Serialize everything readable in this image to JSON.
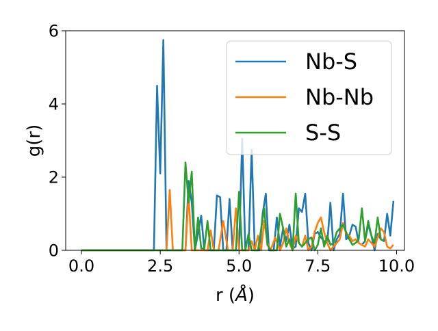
{
  "chart_data": {
    "type": "line",
    "title": "",
    "xlabel": "r (",
    "xlabel_unit": "Å",
    "xlabel_close": ")",
    "ylabel": "g(r)",
    "xlim": [
      -0.5,
      10.25
    ],
    "ylim": [
      0,
      6
    ],
    "xticks": [
      0.0,
      2.5,
      5.0,
      7.5,
      10.0
    ],
    "xtick_labels": [
      "0.0",
      "2.5",
      "5.0",
      "7.5",
      "10.0"
    ],
    "yticks": [
      0,
      2,
      4,
      6
    ],
    "ytick_labels": [
      "0",
      "2",
      "4",
      "6"
    ],
    "grid": false,
    "legend_position": "upper-right",
    "series": [
      {
        "name": "Nb-S",
        "color": "#1f77b4",
        "points": [
          [
            0,
            0
          ],
          [
            2.3,
            0
          ],
          [
            2.4,
            4.5
          ],
          [
            2.5,
            2.1
          ],
          [
            2.6,
            5.75
          ],
          [
            2.7,
            0
          ],
          [
            3.3,
            0
          ],
          [
            3.4,
            1.9
          ],
          [
            3.5,
            1.3
          ],
          [
            3.6,
            0
          ],
          [
            3.8,
            0.95
          ],
          [
            3.9,
            0
          ],
          [
            4.2,
            0
          ],
          [
            4.3,
            1.5
          ],
          [
            4.4,
            1.45
          ],
          [
            4.5,
            0
          ],
          [
            4.6,
            0
          ],
          [
            4.7,
            1.4
          ],
          [
            4.8,
            0
          ],
          [
            5.0,
            0
          ],
          [
            5.1,
            3.05
          ],
          [
            5.2,
            0
          ],
          [
            5.3,
            0
          ],
          [
            5.4,
            2.75
          ],
          [
            5.5,
            0
          ],
          [
            5.65,
            0
          ],
          [
            5.75,
            1.0
          ],
          [
            5.85,
            1.55
          ],
          [
            5.95,
            0
          ],
          [
            6.1,
            0
          ],
          [
            6.2,
            0.9
          ],
          [
            6.3,
            0.1
          ],
          [
            6.4,
            0.6
          ],
          [
            6.5,
            0.25
          ],
          [
            6.6,
            0.7
          ],
          [
            6.7,
            0.05
          ],
          [
            6.8,
            0.1
          ],
          [
            6.9,
            1.15
          ],
          [
            7.0,
            1.05
          ],
          [
            7.1,
            1.55
          ],
          [
            7.2,
            0.2
          ],
          [
            7.3,
            0
          ],
          [
            7.4,
            0.45
          ],
          [
            7.5,
            0.5
          ],
          [
            7.6,
            0.35
          ],
          [
            7.7,
            0.25
          ],
          [
            7.8,
            0.2
          ],
          [
            7.9,
            1.3
          ],
          [
            8.0,
            0
          ],
          [
            8.1,
            0.3
          ],
          [
            8.2,
            0.45
          ],
          [
            8.3,
            1.55
          ],
          [
            8.4,
            0.3
          ],
          [
            8.5,
            0.4
          ],
          [
            8.6,
            0.7
          ],
          [
            8.7,
            0.65
          ],
          [
            8.8,
            0.2
          ],
          [
            8.9,
            0.15
          ],
          [
            9.0,
            0.25
          ],
          [
            9.1,
            0.7
          ],
          [
            9.2,
            0.4
          ],
          [
            9.3,
            0
          ],
          [
            9.4,
            0.45
          ],
          [
            9.5,
            0.3
          ],
          [
            9.6,
            0.25
          ],
          [
            9.7,
            1.0
          ],
          [
            9.8,
            0.4
          ],
          [
            9.9,
            1.35
          ]
        ]
      },
      {
        "name": "Nb-Nb",
        "color": "#ff7f0e",
        "points": [
          [
            0,
            0
          ],
          [
            2.7,
            0
          ],
          [
            2.8,
            1.65
          ],
          [
            2.9,
            0
          ],
          [
            3.3,
            0
          ],
          [
            3.4,
            1.5
          ],
          [
            3.5,
            0
          ],
          [
            4.0,
            0
          ],
          [
            4.1,
            0.55
          ],
          [
            4.2,
            0
          ],
          [
            4.35,
            0
          ],
          [
            4.5,
            0.8
          ],
          [
            4.65,
            0
          ],
          [
            4.8,
            0
          ],
          [
            4.9,
            1.15
          ],
          [
            5.0,
            0
          ],
          [
            5.3,
            0
          ],
          [
            5.4,
            0.25
          ],
          [
            5.5,
            0
          ],
          [
            5.6,
            0.4
          ],
          [
            5.7,
            0
          ],
          [
            5.8,
            0.8
          ],
          [
            5.9,
            0.2
          ],
          [
            6.0,
            0
          ],
          [
            6.15,
            0.35
          ],
          [
            6.3,
            0
          ],
          [
            6.4,
            0.2
          ],
          [
            6.5,
            0.6
          ],
          [
            6.6,
            0.2
          ],
          [
            6.7,
            0
          ],
          [
            6.8,
            0.4
          ],
          [
            6.9,
            0.2
          ],
          [
            7.0,
            0.1
          ],
          [
            7.1,
            0.4
          ],
          [
            7.2,
            0
          ],
          [
            7.3,
            0.1
          ],
          [
            7.4,
            0.5
          ],
          [
            7.5,
            0.75
          ],
          [
            7.6,
            0.9
          ],
          [
            7.7,
            0.5
          ],
          [
            7.8,
            0.2
          ],
          [
            7.9,
            0
          ],
          [
            8.0,
            0.1
          ],
          [
            8.1,
            0.2
          ],
          [
            8.2,
            0.3
          ],
          [
            8.3,
            0.75
          ],
          [
            8.4,
            0.45
          ],
          [
            8.5,
            0.4
          ],
          [
            8.6,
            0.25
          ],
          [
            8.7,
            0.3
          ],
          [
            8.8,
            0.2
          ],
          [
            8.9,
            0.15
          ],
          [
            9.0,
            0.1
          ],
          [
            9.1,
            0.3
          ],
          [
            9.2,
            0.2
          ],
          [
            9.3,
            0.1
          ],
          [
            9.4,
            0.35
          ],
          [
            9.5,
            0.6
          ],
          [
            9.6,
            0.5
          ],
          [
            9.7,
            0.1
          ],
          [
            9.8,
            0.05
          ],
          [
            9.9,
            0.15
          ]
        ]
      },
      {
        "name": "S-S",
        "color": "#2ca02c",
        "points": [
          [
            0,
            0
          ],
          [
            3.2,
            0
          ],
          [
            3.3,
            2.4
          ],
          [
            3.4,
            1.3
          ],
          [
            3.5,
            2.15
          ],
          [
            3.6,
            0
          ],
          [
            3.7,
            0.9
          ],
          [
            3.8,
            0.05
          ],
          [
            3.9,
            0.05
          ],
          [
            4.0,
            0.8
          ],
          [
            4.1,
            0
          ],
          [
            4.9,
            0
          ],
          [
            5.0,
            1.6
          ],
          [
            5.1,
            0
          ],
          [
            5.2,
            0
          ],
          [
            5.3,
            0.45
          ],
          [
            5.4,
            0
          ],
          [
            5.6,
            0
          ],
          [
            5.8,
            1.15
          ],
          [
            5.9,
            0.15
          ],
          [
            6.0,
            0
          ],
          [
            6.2,
            0
          ],
          [
            6.3,
            1.0
          ],
          [
            6.4,
            0.6
          ],
          [
            6.5,
            0.1
          ],
          [
            6.6,
            0.3
          ],
          [
            6.7,
            0
          ],
          [
            6.8,
            1.55
          ],
          [
            6.9,
            0.2
          ],
          [
            7.0,
            0.1
          ],
          [
            7.2,
            0.3
          ],
          [
            7.3,
            0.35
          ],
          [
            7.4,
            0
          ],
          [
            7.5,
            0.15
          ],
          [
            7.6,
            0.6
          ],
          [
            7.7,
            0.1
          ],
          [
            7.8,
            0.4
          ],
          [
            7.9,
            0.15
          ],
          [
            8.0,
            0.2
          ],
          [
            8.1,
            0.5
          ],
          [
            8.2,
            0.6
          ],
          [
            8.3,
            0.7
          ],
          [
            8.4,
            0.5
          ],
          [
            8.5,
            0.3
          ],
          [
            8.6,
            0.15
          ],
          [
            8.7,
            0.2
          ],
          [
            8.8,
            0.3
          ],
          [
            8.9,
            1.15
          ],
          [
            9.0,
            0.25
          ],
          [
            9.1,
            0.8
          ],
          [
            9.2,
            0.4
          ],
          [
            9.3,
            0.2
          ],
          [
            9.4,
            0.9
          ],
          [
            9.5,
            0.3
          ],
          [
            9.6,
            0.25
          ]
        ]
      }
    ]
  }
}
